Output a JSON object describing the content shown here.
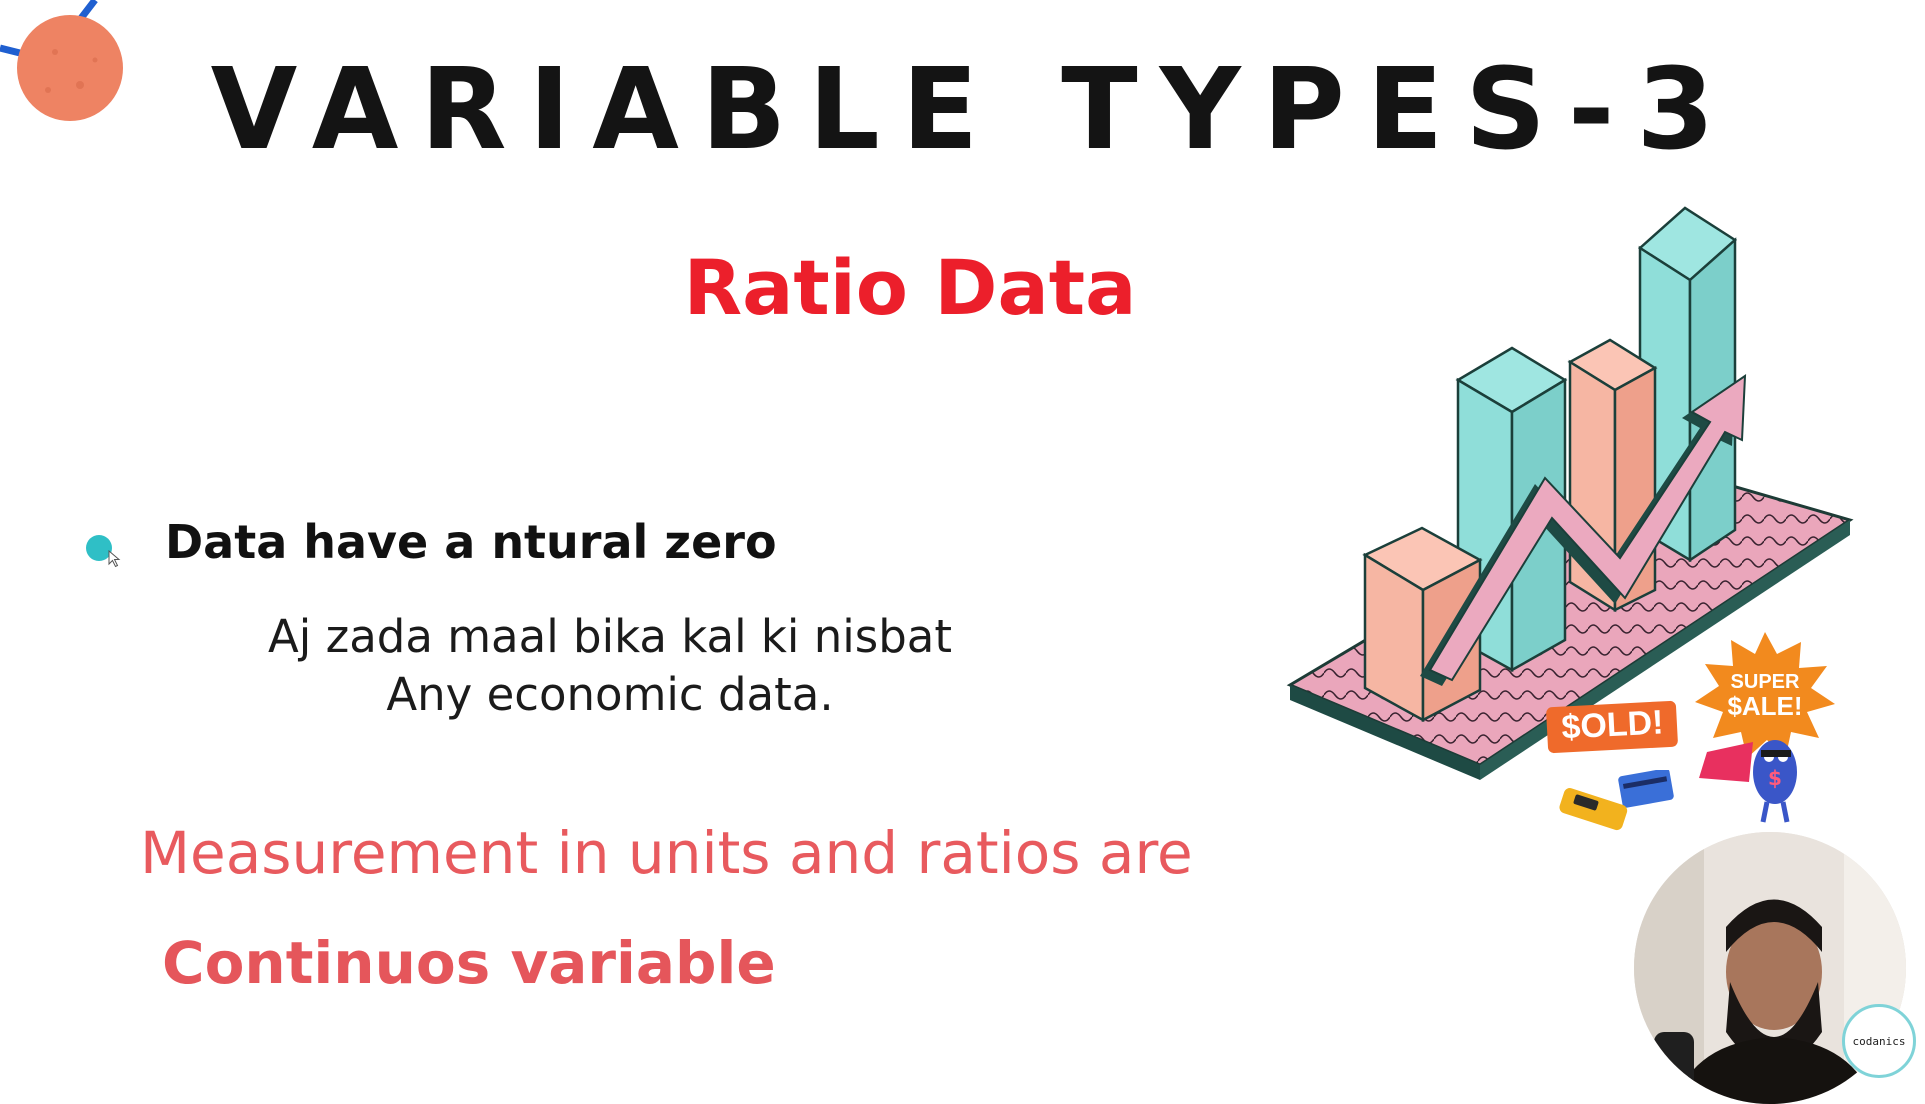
{
  "slide": {
    "title": "VARIABLE TYPES-3",
    "subtitle": "Ratio Data",
    "bullet": "Data have a ntural zero",
    "example_lines": [
      "Aj zada maal bika kal ki nisbat",
      "Any economic data."
    ],
    "measurement_line": "Measurement in units and ratios are",
    "conclusion": "Continuos variable"
  },
  "illustration": {
    "sold_label": "$OLD!",
    "sale_label_1": "SUPER",
    "sale_label_2": "$ALE!",
    "mascot_symbol": "$",
    "icons": [
      "bar-chart-3d-icon",
      "trend-arrow-icon",
      "credit-card-icon",
      "card-reader-icon",
      "mascot-icon"
    ]
  },
  "webcam": {
    "brand": "codanics"
  },
  "colors": {
    "title": "#141414",
    "subtitle": "#ec1f2b",
    "bullet_dot": "#2fbfc6",
    "measurement": "#e85a5e",
    "teal_bar": "#8fded9",
    "salmon_bar": "#f6b6a3",
    "platform": "#e7a3b8",
    "arrow": "#eba9bf"
  }
}
